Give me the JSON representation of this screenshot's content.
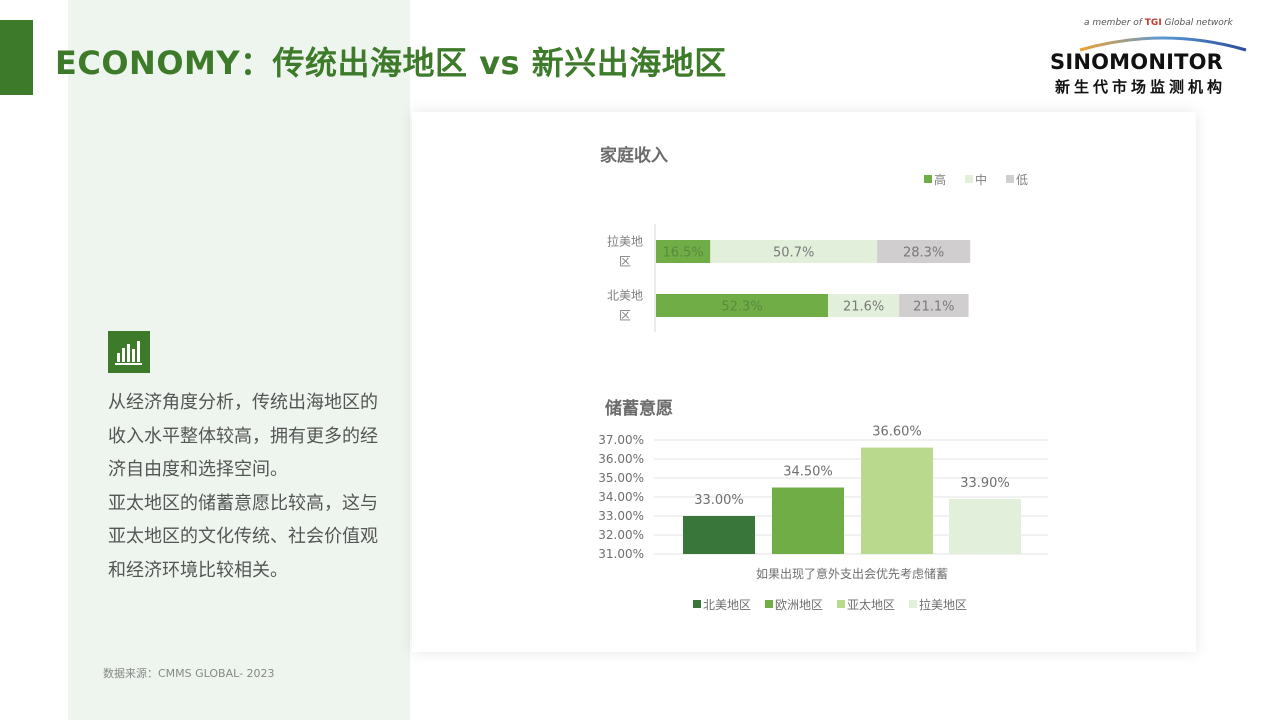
{
  "title": "ECONOMY：传统出海地区 vs 新兴出海地区",
  "logo": {
    "tagline_prefix": "a member of ",
    "tagline_brand": "TGI",
    "tagline_suffix": " Global network",
    "brand": "SINOMONITOR",
    "subtitle": "新生代市场监测机构"
  },
  "body": {
    "paragraph1": "从经济角度分析，传统出海地区的收入水平整体较高，拥有更多的经济自由度和选择空间。",
    "paragraph2": "亚太地区的储蓄意愿比较高，这与亚太地区的文化传统、社会价值观和经济环境比较相关。"
  },
  "source": "数据来源：CMMS GLOBAL- 2023",
  "colors": {
    "accent": "#3d7a2a",
    "panel": "#eef5ee",
    "high": "#70ad47",
    "mid": "#e2efda",
    "low": "#d0cece",
    "bar1": "#38763a",
    "bar2": "#70ad47",
    "bar3": "#b9d98c",
    "bar4": "#e2efda"
  },
  "chart_data": [
    {
      "type": "bar",
      "orientation": "horizontal",
      "stacked": true,
      "title": "家庭收入",
      "categories": [
        "拉美地区",
        "北美地区"
      ],
      "series": [
        {
          "name": "高",
          "values": [
            16.5,
            52.3
          ],
          "labels": [
            "16.5%",
            "52.3%"
          ]
        },
        {
          "name": "中",
          "values": [
            50.7,
            21.6
          ],
          "labels": [
            "50.7%",
            "21.6%"
          ]
        },
        {
          "name": "低",
          "values": [
            28.3,
            21.1
          ],
          "labels": [
            "28.3%",
            "21.1%"
          ]
        }
      ],
      "legend_position": "top-right"
    },
    {
      "type": "bar",
      "title": "储蓄意愿",
      "xlabel": "如果出现了意外支出会优先考虑储蓄",
      "categories": [
        "北美地区",
        "欧洲地区",
        "亚太地区",
        "拉美地区"
      ],
      "values": [
        33.0,
        34.5,
        36.6,
        33.9
      ],
      "labels": [
        "33.00%",
        "34.50%",
        "36.60%",
        "33.90%"
      ],
      "ylim": [
        31,
        37
      ],
      "yticks": [
        "31.00%",
        "32.00%",
        "33.00%",
        "34.00%",
        "35.00%",
        "36.00%",
        "37.00%"
      ],
      "grid": true,
      "legend_position": "bottom"
    }
  ]
}
